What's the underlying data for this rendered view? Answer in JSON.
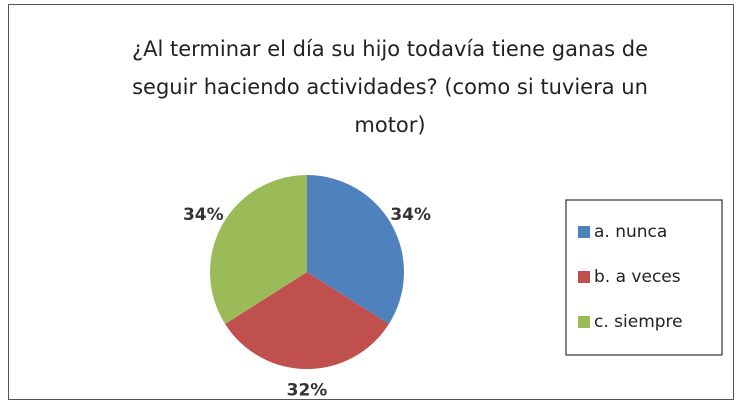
{
  "chart_data": {
    "type": "pie",
    "title": "¿Al terminar el día su hijo todavía tiene ganas de seguir haciendo actividades? (como si tuviera un motor)",
    "categories": [
      "a. nunca",
      "b. a veces",
      "c. siempre"
    ],
    "values": [
      34,
      32,
      34
    ],
    "value_labels": [
      "34%",
      "32%",
      "34%"
    ],
    "colors": [
      "#4f81bd",
      "#c0504d",
      "#9bbb59"
    ],
    "legend": "right"
  }
}
